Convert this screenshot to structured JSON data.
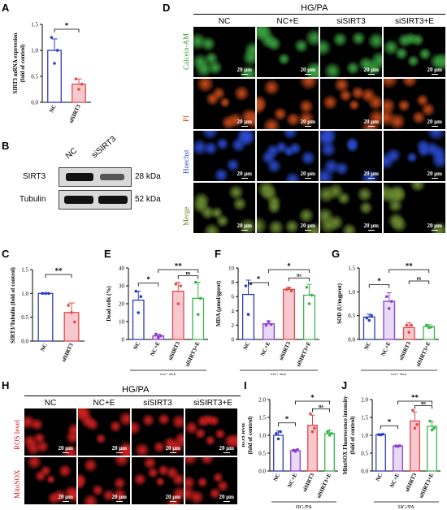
{
  "panel_letters": {
    "A": "A",
    "B": "B",
    "C": "C",
    "D": "D",
    "E": "E",
    "F": "F",
    "G": "G",
    "H": "H",
    "I": "I",
    "J": "J"
  },
  "colors": {
    "nc": "#2d3bbf",
    "nce": "#8a3fd0",
    "si": "#e04a4a",
    "sie": "#39b54a",
    "nc_fill": "#ffffff",
    "nce_fill": "#e8d9f7",
    "si_fill": "#f7c9cf",
    "sie_fill": "#ffffff",
    "star": "#000000"
  },
  "group_label": "HG/PA",
  "conditions": [
    "NC",
    "NC+E",
    "siSIRT3",
    "siSIRT3+E"
  ],
  "D": {
    "rows": [
      "Calcein-AM",
      "PI",
      "Hoechst",
      "Merge"
    ],
    "row_colors": [
      "#3aa040",
      "#c84a1a",
      "#2a4ad0",
      "#222222"
    ],
    "scale_text": "20 μm"
  },
  "H": {
    "rows": [
      "ROS level",
      "MitoSOX"
    ],
    "row_colors": [
      "#d02020",
      "#d02020"
    ],
    "scale_text": "20 μm"
  },
  "B": {
    "lanes": [
      "NC",
      "siSIRT3"
    ],
    "proteins": [
      "SIRT3",
      "Tubulin"
    ],
    "sizes": [
      "28 kDa",
      "52 kDa"
    ]
  },
  "chart_data": [
    {
      "id": "A",
      "type": "bar",
      "categories": [
        "NC",
        "siSIRT3"
      ],
      "values": [
        1.0,
        0.35
      ],
      "points": [
        [
          1.25,
          0.75,
          1.0
        ],
        [
          0.45,
          0.25,
          0.35
        ]
      ],
      "errors": [
        0.22,
        0.1
      ],
      "ylabel": "SIRT3 mRNA expression\n(fold of control)",
      "ylim": [
        0,
        1.5
      ],
      "yticks": [
        0.0,
        0.5,
        1.0,
        1.5
      ],
      "sig": [
        {
          "from": 0,
          "to": 1,
          "label": "*"
        }
      ]
    },
    {
      "id": "C",
      "type": "bar",
      "categories": [
        "NC",
        "siSIRT3"
      ],
      "values": [
        1.0,
        0.6
      ],
      "points": [
        [
          1.0,
          1.0,
          1.0
        ],
        [
          0.75,
          0.6,
          0.4
        ]
      ],
      "errors": [
        0.01,
        0.2
      ],
      "ylabel": "SIRT3/Tubulin (fold of control)",
      "ylim": [
        0,
        1.5
      ],
      "yticks": [
        0.0,
        0.5,
        1.0,
        1.5
      ],
      "sig": [
        {
          "from": 0,
          "to": 1,
          "label": "**"
        }
      ]
    },
    {
      "id": "E",
      "type": "bar",
      "categories": [
        "NC",
        "NC+E",
        "siSIRT3",
        "siSIRT3+E"
      ],
      "values": [
        22,
        2,
        27,
        23
      ],
      "points": [
        [
          27,
          15,
          24
        ],
        [
          3,
          1,
          2
        ],
        [
          31,
          20,
          30
        ],
        [
          32,
          14,
          23
        ]
      ],
      "errors": [
        5,
        1,
        5,
        9
      ],
      "ylabel": "Dead cells (%)",
      "xlabel": "HG/PA",
      "ylim": [
        0,
        40
      ],
      "yticks": [
        0,
        10,
        20,
        30,
        40
      ],
      "sig": [
        {
          "from": 0,
          "to": 1,
          "label": "*"
        },
        {
          "from": 1,
          "to": 3,
          "label": "**"
        },
        {
          "from": 2,
          "to": 3,
          "label": "ns"
        }
      ]
    },
    {
      "id": "F",
      "type": "bar",
      "categories": [
        "NC",
        "NC+E",
        "siSIRT3",
        "siSIRT3+E"
      ],
      "values": [
        6.3,
        2.2,
        7.0,
        6.2
      ],
      "points": [
        [
          7.5,
          3.5,
          7.8
        ],
        [
          2.0,
          2.5,
          2.1
        ],
        [
          7.0,
          7.2,
          6.8
        ],
        [
          7.3,
          5.0,
          6.2
        ]
      ],
      "errors": [
        2.0,
        0.4,
        0.3,
        1.5
      ],
      "ylabel": "MDA (μmol/gprot)",
      "xlabel": "HG/PA",
      "ylim": [
        0,
        10
      ],
      "yticks": [
        0,
        2,
        4,
        6,
        8,
        10
      ],
      "sig": [
        {
          "from": 0,
          "to": 1,
          "label": "*"
        },
        {
          "from": 1,
          "to": 3,
          "label": "*"
        },
        {
          "from": 2,
          "to": 3,
          "label": "ns"
        }
      ]
    },
    {
      "id": "G",
      "type": "bar",
      "categories": [
        "NC",
        "NC+E",
        "siSIRT3",
        "siSIRT3+E"
      ],
      "values": [
        0.47,
        0.8,
        0.25,
        0.27
      ],
      "points": [
        [
          0.45,
          0.4,
          0.5
        ],
        [
          0.9,
          0.65,
          0.8
        ],
        [
          0.3,
          0.15,
          0.3
        ],
        [
          0.3,
          0.25,
          0.26
        ]
      ],
      "errors": [
        0.06,
        0.18,
        0.1,
        0.04
      ],
      "ylabel": "SOD (U/mgprot)",
      "xlabel": "HG/PA",
      "ylim": [
        0,
        1.5
      ],
      "yticks": [
        0.0,
        0.5,
        1.0,
        1.5
      ],
      "sig": [
        {
          "from": 0,
          "to": 1,
          "label": "*"
        },
        {
          "from": 1,
          "to": 3,
          "label": "**"
        },
        {
          "from": 2,
          "to": 3,
          "label": "ns"
        }
      ]
    },
    {
      "id": "I",
      "type": "bar",
      "categories": [
        "NC",
        "NC+E",
        "siSIRT3",
        "siSIRT3+E"
      ],
      "values": [
        1.0,
        0.57,
        1.28,
        1.05
      ],
      "points": [
        [
          1.05,
          0.9,
          1.1
        ],
        [
          0.58,
          0.55,
          0.6
        ],
        [
          1.6,
          1.1,
          1.2
        ],
        [
          1.1,
          1.0,
          1.05
        ]
      ],
      "errors": [
        0.12,
        0.03,
        0.28,
        0.1
      ],
      "ylabel": "ROS level\n(fold of control)",
      "xlabel": "HG/PA",
      "ylim": [
        0,
        2.0
      ],
      "yticks": [
        0.0,
        0.5,
        1.0,
        1.5,
        2.0
      ],
      "sig": [
        {
          "from": 0,
          "to": 1,
          "label": "*"
        },
        {
          "from": 1,
          "to": 3,
          "label": "*"
        },
        {
          "from": 2,
          "to": 3,
          "label": "ns"
        }
      ]
    },
    {
      "id": "J",
      "type": "bar",
      "categories": [
        "NC",
        "NC+E",
        "siSIRT3",
        "siSIRT3+E"
      ],
      "values": [
        1.02,
        0.7,
        1.4,
        1.25
      ],
      "points": [
        [
          1.02,
          1.01,
          1.03
        ],
        [
          0.7,
          0.69,
          0.71
        ],
        [
          1.7,
          1.2,
          1.3
        ],
        [
          1.4,
          1.15,
          1.2
        ]
      ],
      "errors": [
        0.02,
        0.02,
        0.25,
        0.13
      ],
      "ylabel": "MitoSOX Fluorescence intensity\n(fold of control)",
      "xlabel": "HG/PA",
      "ylim": [
        0,
        2.0
      ],
      "yticks": [
        0.0,
        0.5,
        1.0,
        1.5,
        2.0
      ],
      "sig": [
        {
          "from": 0,
          "to": 1,
          "label": "*"
        },
        {
          "from": 1,
          "to": 3,
          "label": "**"
        },
        {
          "from": 2,
          "to": 3,
          "label": "ns"
        }
      ]
    }
  ]
}
